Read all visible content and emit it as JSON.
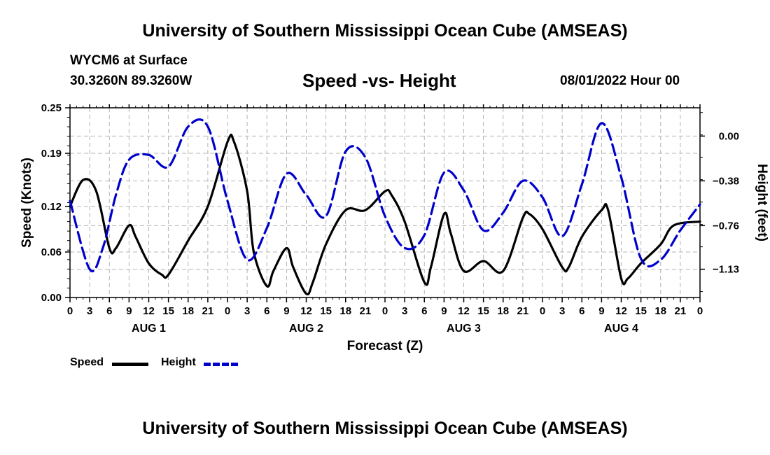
{
  "header": {
    "title": "University of Southern Mississippi Ocean Cube (AMSEAS)",
    "station": "WYCM6 at Surface",
    "coordinates": "30.3260N  89.3260W",
    "chart_title": "Speed -vs- Height",
    "datetime": "08/01/2022 Hour 00"
  },
  "footer": {
    "title": "University of Southern Mississippi Ocean Cube (AMSEAS)"
  },
  "legend": {
    "speed_label": "Speed",
    "height_label": "Height"
  },
  "colors": {
    "speed": "#000000",
    "height": "#0000cc",
    "grid": "#b4b4b4"
  },
  "chart_data": {
    "type": "line",
    "title": "Speed -vs- Height",
    "xlabel": "Forecast (Z)",
    "ylabel_left": "Speed (Knots)",
    "ylabel_right": "Height (feet)",
    "x_range_hours": [
      0,
      96
    ],
    "xtick_labels": [
      "0",
      "3",
      "6",
      "9",
      "12",
      "15",
      "18",
      "21",
      "0",
      "3",
      "6",
      "9",
      "12",
      "15",
      "18",
      "21",
      "0",
      "3",
      "6",
      "9",
      "12",
      "15",
      "18",
      "21",
      "0",
      "3",
      "6",
      "9",
      "12",
      "15",
      "18",
      "21",
      "0"
    ],
    "day_labels": [
      {
        "label": "AUG 1",
        "center_hour": 12
      },
      {
        "label": "AUG 2",
        "center_hour": 36
      },
      {
        "label": "AUG 3",
        "center_hour": 60
      },
      {
        "label": "AUG 4",
        "center_hour": 84
      }
    ],
    "ylim_left": [
      0,
      0.25
    ],
    "yticks_left": [
      0.0,
      0.06,
      0.12,
      0.19,
      0.25
    ],
    "ytick_labels_left": [
      "0.00",
      "0.06",
      "0.12",
      "0.19",
      "0.25"
    ],
    "ylim_right": [
      -1.37,
      0.24
    ],
    "yticks_right": [
      -1.13,
      -0.76,
      -0.38,
      0.0
    ],
    "ytick_labels_right": [
      "−1.13",
      "−0.76",
      "−0.38",
      "0.00"
    ],
    "grid": true,
    "series": [
      {
        "name": "Speed",
        "axis": "left",
        "style": "solid",
        "hours": [
          0,
          2,
          4,
          6,
          7,
          9,
          10,
          12,
          14,
          15,
          18,
          21,
          24,
          25,
          27,
          28,
          30,
          31,
          33,
          34,
          36,
          37,
          39,
          42,
          45,
          48,
          49,
          51,
          54,
          55,
          57,
          58,
          60,
          63,
          66,
          69,
          70,
          72,
          75,
          76,
          78,
          81,
          82,
          84,
          85,
          87,
          90,
          92,
          96
        ],
        "values": [
          0.12,
          0.155,
          0.14,
          0.065,
          0.065,
          0.095,
          0.08,
          0.045,
          0.03,
          0.03,
          0.075,
          0.12,
          0.205,
          0.205,
          0.14,
          0.06,
          0.015,
          0.035,
          0.065,
          0.04,
          0.005,
          0.02,
          0.07,
          0.115,
          0.115,
          0.14,
          0.135,
          0.1,
          0.02,
          0.04,
          0.11,
          0.085,
          0.035,
          0.048,
          0.035,
          0.105,
          0.11,
          0.09,
          0.04,
          0.04,
          0.08,
          0.115,
          0.115,
          0.025,
          0.025,
          0.045,
          0.07,
          0.095,
          0.1
        ]
      },
      {
        "name": "Height",
        "axis": "right",
        "style": "dashed",
        "hours": [
          0,
          3,
          5,
          7,
          9,
          12,
          15,
          18,
          21,
          24,
          27,
          30,
          33,
          36,
          39,
          42,
          45,
          48,
          51,
          54,
          57,
          60,
          63,
          66,
          69,
          72,
          75,
          78,
          81,
          84,
          87,
          90,
          93,
          96
        ],
        "values": [
          -0.55,
          -1.13,
          -0.95,
          -0.5,
          -0.2,
          -0.16,
          -0.26,
          0.08,
          0.08,
          -0.55,
          -1.05,
          -0.78,
          -0.32,
          -0.5,
          -0.68,
          -0.13,
          -0.18,
          -0.68,
          -0.95,
          -0.84,
          -0.31,
          -0.46,
          -0.8,
          -0.65,
          -0.38,
          -0.52,
          -0.85,
          -0.41,
          0.11,
          -0.35,
          -1.04,
          -1.05,
          -0.8,
          -0.58
        ]
      }
    ]
  }
}
